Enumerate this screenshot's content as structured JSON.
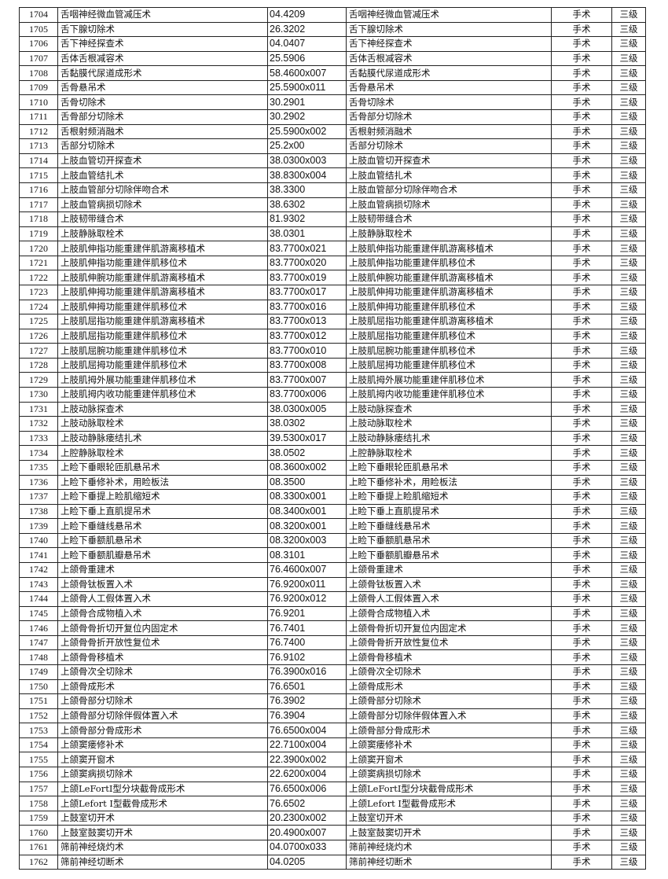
{
  "table": {
    "rows": [
      [
        "1704",
        "舌咽神经微血管减压术",
        "04.4209",
        "舌咽神经微血管减压术",
        "手术",
        "三级"
      ],
      [
        "1705",
        "舌下腺切除术",
        "26.3202",
        "舌下腺切除术",
        "手术",
        "三级"
      ],
      [
        "1706",
        "舌下神经探查术",
        "04.0407",
        "舌下神经探查术",
        "手术",
        "三级"
      ],
      [
        "1707",
        "舌体舌根减容术",
        "25.5906",
        "舌体舌根减容术",
        "手术",
        "三级"
      ],
      [
        "1708",
        "舌黏膜代尿道成形术",
        "58.4600x007",
        "舌黏膜代尿道成形术",
        "手术",
        "三级"
      ],
      [
        "1709",
        "舌骨悬吊术",
        "25.5900x011",
        "舌骨悬吊术",
        "手术",
        "三级"
      ],
      [
        "1710",
        "舌骨切除术",
        "30.2901",
        "舌骨切除术",
        "手术",
        "三级"
      ],
      [
        "1711",
        "舌骨部分切除术",
        "30.2902",
        "舌骨部分切除术",
        "手术",
        "三级"
      ],
      [
        "1712",
        "舌根射频消融术",
        "25.5900x002",
        "舌根射频消融术",
        "手术",
        "三级"
      ],
      [
        "1713",
        "舌部分切除术",
        "25.2x00",
        "舌部分切除术",
        "手术",
        "三级"
      ],
      [
        "1714",
        "上肢血管切开探查术",
        "38.0300x003",
        "上肢血管切开探查术",
        "手术",
        "三级"
      ],
      [
        "1715",
        "上肢血管结扎术",
        "38.8300x004",
        "上肢血管结扎术",
        "手术",
        "三级"
      ],
      [
        "1716",
        "上肢血管部分切除伴吻合术",
        "38.3300",
        "上肢血管部分切除伴吻合术",
        "手术",
        "三级"
      ],
      [
        "1717",
        "上肢血管病损切除术",
        "38.6302",
        "上肢血管病损切除术",
        "手术",
        "三级"
      ],
      [
        "1718",
        "上肢韧带缝合术",
        "81.9302",
        "上肢韧带缝合术",
        "手术",
        "三级"
      ],
      [
        "1719",
        "上肢静脉取栓术",
        "38.0301",
        "上肢静脉取栓术",
        "手术",
        "三级"
      ],
      [
        "1720",
        "上肢肌伸指功能重建伴肌游离移植术",
        "83.7700x021",
        "上肢肌伸指功能重建伴肌游离移植术",
        "手术",
        "三级"
      ],
      [
        "1721",
        "上肢肌伸指功能重建伴肌移位术",
        "83.7700x020",
        "上肢肌伸指功能重建伴肌移位术",
        "手术",
        "三级"
      ],
      [
        "1722",
        "上肢肌伸腕功能重建伴肌游离移植术",
        "83.7700x019",
        "上肢肌伸腕功能重建伴肌游离移植术",
        "手术",
        "三级"
      ],
      [
        "1723",
        "上肢肌伸拇功能重建伴肌游离移植术",
        "83.7700x017",
        "上肢肌伸拇功能重建伴肌游离移植术",
        "手术",
        "三级"
      ],
      [
        "1724",
        "上肢肌伸拇功能重建伴肌移位术",
        "83.7700x016",
        "上肢肌伸拇功能重建伴肌移位术",
        "手术",
        "三级"
      ],
      [
        "1725",
        "上肢肌屈指功能重建伴肌游离移植术",
        "83.7700x013",
        "上肢肌屈指功能重建伴肌游离移植术",
        "手术",
        "三级"
      ],
      [
        "1726",
        "上肢肌屈指功能重建伴肌移位术",
        "83.7700x012",
        "上肢肌屈指功能重建伴肌移位术",
        "手术",
        "三级"
      ],
      [
        "1727",
        "上肢肌屈腕功能重建伴肌移位术",
        "83.7700x010",
        "上肢肌屈腕功能重建伴肌移位术",
        "手术",
        "三级"
      ],
      [
        "1728",
        "上肢肌屈拇功能重建伴肌移位术",
        "83.7700x008",
        "上肢肌屈拇功能重建伴肌移位术",
        "手术",
        "三级"
      ],
      [
        "1729",
        "上肢肌拇外展功能重建伴肌移位术",
        "83.7700x007",
        "上肢肌拇外展功能重建伴肌移位术",
        "手术",
        "三级"
      ],
      [
        "1730",
        "上肢肌拇内收功能重建伴肌移位术",
        "83.7700x006",
        "上肢肌拇内收功能重建伴肌移位术",
        "手术",
        "三级"
      ],
      [
        "1731",
        "上肢动脉探查术",
        "38.0300x005",
        "上肢动脉探查术",
        "手术",
        "三级"
      ],
      [
        "1732",
        "上肢动脉取栓术",
        "38.0302",
        "上肢动脉取栓术",
        "手术",
        "三级"
      ],
      [
        "1733",
        "上肢动静脉瘘结扎术",
        "39.5300x017",
        "上肢动静脉瘘结扎术",
        "手术",
        "三级"
      ],
      [
        "1734",
        "上腔静脉取栓术",
        "38.0502",
        "上腔静脉取栓术",
        "手术",
        "三级"
      ],
      [
        "1735",
        "上睑下垂眼轮匝肌悬吊术",
        "08.3600x002",
        "上睑下垂眼轮匝肌悬吊术",
        "手术",
        "三级"
      ],
      [
        "1736",
        "上睑下垂修补术，用睑板法",
        "08.3500",
        "上睑下垂修补术，用睑板法",
        "手术",
        "三级"
      ],
      [
        "1737",
        "上睑下垂提上睑肌缩短术",
        "08.3300x001",
        "上睑下垂提上睑肌缩短术",
        "手术",
        "三级"
      ],
      [
        "1738",
        "上睑下垂上直肌提吊术",
        "08.3400x001",
        "上睑下垂上直肌提吊术",
        "手术",
        "三级"
      ],
      [
        "1739",
        "上睑下垂缝线悬吊术",
        "08.3200x001",
        "上睑下垂缝线悬吊术",
        "手术",
        "三级"
      ],
      [
        "1740",
        "上睑下垂额肌悬吊术",
        "08.3200x003",
        "上睑下垂额肌悬吊术",
        "手术",
        "三级"
      ],
      [
        "1741",
        "上睑下垂额肌瓣悬吊术",
        "08.3101",
        "上睑下垂额肌瓣悬吊术",
        "手术",
        "三级"
      ],
      [
        "1742",
        "上颌骨重建术",
        "76.4600x007",
        "上颌骨重建术",
        "手术",
        "三级"
      ],
      [
        "1743",
        "上颌骨钛板置入术",
        "76.9200x011",
        "上颌骨钛板置入术",
        "手术",
        "三级"
      ],
      [
        "1744",
        "上颌骨人工假体置入术",
        "76.9200x012",
        "上颌骨人工假体置入术",
        "手术",
        "三级"
      ],
      [
        "1745",
        "上颌骨合成物植入术",
        "76.9201",
        "上颌骨合成物植入术",
        "手术",
        "三级"
      ],
      [
        "1746",
        "上颌骨骨折切开复位内固定术",
        "76.7401",
        "上颌骨骨折切开复位内固定术",
        "手术",
        "三级"
      ],
      [
        "1747",
        "上颌骨骨折开放性复位术",
        "76.7400",
        "上颌骨骨折开放性复位术",
        "手术",
        "三级"
      ],
      [
        "1748",
        "上颌骨骨移植术",
        "76.9102",
        "上颌骨骨移植术",
        "手术",
        "三级"
      ],
      [
        "1749",
        "上颌骨次全切除术",
        "76.3900x016",
        "上颌骨次全切除术",
        "手术",
        "三级"
      ],
      [
        "1750",
        "上颌骨成形术",
        "76.6501",
        "上颌骨成形术",
        "手术",
        "三级"
      ],
      [
        "1751",
        "上颌骨部分切除术",
        "76.3902",
        "上颌骨部分切除术",
        "手术",
        "三级"
      ],
      [
        "1752",
        "上颌骨部分切除伴假体置入术",
        "76.3904",
        "上颌骨部分切除伴假体置入术",
        "手术",
        "三级"
      ],
      [
        "1753",
        "上颌骨部分骨成形术",
        "76.6500x004",
        "上颌骨部分骨成形术",
        "手术",
        "三级"
      ],
      [
        "1754",
        "上颌窦瘘修补术",
        "22.7100x004",
        "上颌窦瘘修补术",
        "手术",
        "三级"
      ],
      [
        "1755",
        "上颌窦开窗术",
        "22.3900x002",
        "上颌窦开窗术",
        "手术",
        "三级"
      ],
      [
        "1756",
        "上颌窦病损切除术",
        "22.6200x004",
        "上颌窦病损切除术",
        "手术",
        "三级"
      ],
      [
        "1757",
        "上颌LeFortI型分块截骨成形术",
        "76.6500x006",
        "上颌LeFortI型分块截骨成形术",
        "手术",
        "三级"
      ],
      [
        "1758",
        "上颌Lefort Ⅰ型截骨成形术",
        "76.6502",
        "上颌Lefort Ⅰ型截骨成形术",
        "手术",
        "三级"
      ],
      [
        "1759",
        "上鼓室切开术",
        "20.2300x002",
        "上鼓室切开术",
        "手术",
        "三级"
      ],
      [
        "1760",
        "上鼓室鼓窦切开术",
        "20.4900x007",
        "上鼓室鼓窦切开术",
        "手术",
        "三级"
      ],
      [
        "1761",
        "筛前神经烧灼术",
        "04.0700x033",
        "筛前神经烧灼术",
        "手术",
        "三级"
      ],
      [
        "1762",
        "筛前神经切断术",
        "04.0205",
        "筛前神经切断术",
        "手术",
        "三级"
      ]
    ]
  }
}
